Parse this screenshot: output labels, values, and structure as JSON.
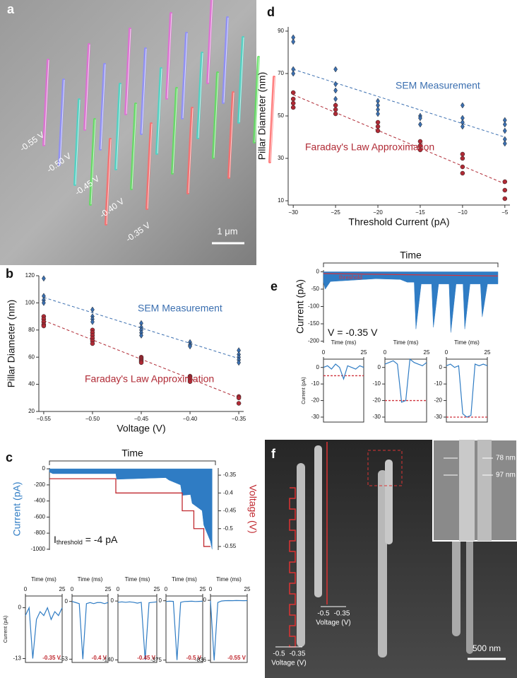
{
  "images": {
    "a": {
      "label": "a",
      "voltages": [
        "-0.55 V",
        "-0.50 V",
        "-0.45 V",
        "-0.40 V",
        "-0.35 V"
      ],
      "scale_bar": "1 μm"
    },
    "f": {
      "label": "f",
      "widths": [
        "78 nm",
        "97 nm"
      ],
      "voltage_scales": [
        {
          "low": "-0.5",
          "high": "-0.35",
          "label": "Voltage (V)"
        },
        {
          "low": "-0.5",
          "high": "-0.35",
          "label": "Voltage (V)"
        }
      ],
      "scale_bar": "500 nm"
    }
  },
  "chart_data": [
    {
      "type": "scatter",
      "panel": "b",
      "xlabel": "Voltage (V)",
      "ylabel": "Pillar Diameter (nm)",
      "xlim": [
        -0.555,
        -0.345
      ],
      "ylim": [
        20,
        120
      ],
      "xticks": [
        {
          "value": -0.55,
          "label": "−0.55"
        },
        {
          "value": -0.5,
          "label": "−0.50"
        },
        {
          "value": -0.45,
          "label": "−0.45"
        },
        {
          "value": -0.4,
          "label": "−0.40"
        },
        {
          "value": -0.35,
          "label": "−0.35"
        }
      ],
      "yticks": [
        20,
        40,
        60,
        80,
        100,
        120
      ],
      "series": [
        {
          "name": "SEM Measurement",
          "color": "#3b6fb0",
          "marker": "diamond",
          "x": [
            -0.55,
            -0.55,
            -0.55,
            -0.55,
            -0.5,
            -0.5,
            -0.5,
            -0.5,
            -0.45,
            -0.45,
            -0.45,
            -0.45,
            -0.45,
            -0.4,
            -0.4,
            -0.4,
            -0.35,
            -0.35,
            -0.35,
            -0.35,
            -0.35
          ],
          "values": [
            118,
            105,
            102,
            100,
            95,
            90,
            88,
            86,
            85,
            82,
            80,
            78,
            76,
            71,
            69,
            68,
            65,
            62,
            60,
            58,
            56
          ],
          "fit": {
            "x": [
              -0.55,
              -0.35
            ],
            "values": [
              104,
              59
            ]
          }
        },
        {
          "name": "Faraday's Law Approximation",
          "color": "#b02a35",
          "marker": "circle",
          "x": [
            -0.55,
            -0.55,
            -0.55,
            -0.55,
            -0.55,
            -0.5,
            -0.5,
            -0.5,
            -0.5,
            -0.5,
            -0.5,
            -0.45,
            -0.45,
            -0.45,
            -0.45,
            -0.45,
            -0.4,
            -0.4,
            -0.4,
            -0.4,
            -0.4,
            -0.35,
            -0.35,
            -0.35
          ],
          "values": [
            90,
            88,
            86,
            84,
            83,
            80,
            78,
            76,
            74,
            72,
            70,
            60,
            59,
            58,
            57,
            56,
            46,
            45,
            44,
            43,
            42,
            31,
            30,
            26
          ],
          "fit": {
            "x": [
              -0.55,
              -0.35
            ],
            "values": [
              87,
              30
            ]
          }
        }
      ]
    },
    {
      "type": "scatter",
      "panel": "d",
      "xlabel": "Threshold Current (pA)",
      "ylabel": "Pillar Diameter (nm)",
      "xlim": [
        -30.6,
        -4.4
      ],
      "ylim": [
        8,
        92
      ],
      "xticks": [
        {
          "value": -30,
          "label": "−30"
        },
        {
          "value": -25,
          "label": "−25"
        },
        {
          "value": -20,
          "label": "−20"
        },
        {
          "value": -15,
          "label": "−15"
        },
        {
          "value": -10,
          "label": "−10"
        },
        {
          "value": -5,
          "label": "−5"
        }
      ],
      "yticks": [
        10,
        30,
        50,
        70,
        90
      ],
      "series": [
        {
          "name": "SEM Measurement",
          "color": "#3b6fb0",
          "marker": "diamond",
          "x": [
            -30,
            -30,
            -30,
            -30,
            -25,
            -25,
            -25,
            -25,
            -25,
            -20,
            -20,
            -20,
            -20,
            -15,
            -15,
            -15,
            -10,
            -10,
            -10,
            -10,
            -5,
            -5,
            -5,
            -5,
            -5
          ],
          "values": [
            87,
            85,
            72,
            70,
            72,
            65,
            62,
            58,
            55,
            57,
            55,
            53,
            51,
            50,
            49,
            46,
            55,
            49,
            47,
            45,
            48,
            46,
            43,
            39,
            37
          ],
          "fit": {
            "x": [
              -30,
              -5
            ],
            "values": [
              72,
              40
            ]
          }
        },
        {
          "name": "Faraday's Law Approximation",
          "color": "#b02a35",
          "marker": "circle",
          "x": [
            -30,
            -30,
            -30,
            -30,
            -25,
            -25,
            -25,
            -20,
            -20,
            -20,
            -15,
            -15,
            -15,
            -10,
            -10,
            -10,
            -10,
            -5,
            -5,
            -5
          ],
          "values": [
            61,
            58,
            56,
            54,
            55,
            53,
            51,
            47,
            45,
            43,
            38,
            36,
            34,
            32,
            30,
            26,
            23,
            19,
            15,
            11
          ],
          "fit": {
            "x": [
              -30,
              -5
            ],
            "values": [
              60,
              18
            ]
          }
        }
      ]
    },
    {
      "type": "area",
      "panel": "c",
      "xlabel": "Time",
      "ylabel": "Current (pA)",
      "y2label": "Voltage (V)",
      "annotation": {
        "main": "I",
        "sub": "threshold",
        "tail": " = -4 pA"
      },
      "xlim": [
        0,
        100
      ],
      "ylim": [
        -1010,
        10
      ],
      "yticks": [
        0,
        -200,
        -400,
        -600,
        -800,
        -1000
      ],
      "y2lim": [
        -0.56,
        -0.33
      ],
      "y2ticks": [
        -0.35,
        -0.4,
        -0.45,
        -0.5,
        -0.55
      ],
      "series": [
        {
          "color": "#2f7cc4",
          "style": "area",
          "x": [
            0,
            2,
            40,
            40.5,
            70,
            72,
            79,
            80,
            85,
            86,
            92,
            93,
            97,
            98
          ],
          "values": [
            -40,
            -60,
            -60,
            -130,
            -110,
            -140,
            -200,
            -330,
            -320,
            -430,
            -520,
            -700,
            -900,
            -1000
          ]
        },
        {
          "color": "#c0282f",
          "style": "line",
          "axis": "y2",
          "x": [
            0,
            40,
            40,
            80,
            80,
            87,
            87,
            93,
            93,
            97
          ],
          "values": [
            -0.36,
            -0.36,
            -0.4,
            -0.4,
            -0.45,
            -0.45,
            -0.5,
            -0.5,
            -0.55,
            -0.55
          ]
        }
      ]
    },
    {
      "type": "line",
      "xlabel": "Time (ms)",
      "ylabel": "Current (pA)",
      "voltage_label": "-0.35 V",
      "xlim": [
        0,
        25
      ],
      "xticks": [
        0,
        25
      ],
      "ylim": [
        -14,
        3
      ],
      "yticks": [
        0,
        -13
      ],
      "series": [
        {
          "color": "#2f7cc4",
          "x": [
            0,
            2.5,
            5,
            7.5,
            10,
            12.5,
            15,
            17.5,
            20,
            22.5,
            25
          ],
          "values": [
            -2,
            0,
            -13,
            -3,
            -1,
            -2,
            0,
            -3,
            -1,
            -2,
            0
          ]
        }
      ]
    },
    {
      "type": "line",
      "xlabel": "Time (ms)",
      "voltage_label": "-0.4 V",
      "xlim": [
        0,
        25
      ],
      "xticks": [
        0,
        25
      ],
      "ylim": [
        -56,
        5
      ],
      "yticks": [
        0,
        -53
      ],
      "series": [
        {
          "color": "#2f7cc4",
          "x": [
            0,
            2.5,
            5,
            7.5,
            10,
            12.5,
            15,
            17.5,
            20,
            22.5,
            25
          ],
          "values": [
            0,
            -1,
            -2,
            -53,
            -2,
            -1,
            -2,
            -1,
            -1,
            -2,
            -1
          ]
        }
      ]
    },
    {
      "type": "line",
      "xlabel": "Time (ms)",
      "voltage_label": "-0.45 V",
      "xlim": [
        0,
        25
      ],
      "xticks": [
        0,
        25
      ],
      "ylim": [
        -146,
        12
      ],
      "yticks": [
        0,
        -140
      ],
      "series": [
        {
          "color": "#2f7cc4",
          "x": [
            0,
            2.5,
            5,
            7.5,
            10,
            12.5,
            15,
            17.5,
            20,
            22.5,
            25
          ],
          "values": [
            -3,
            -2,
            -3,
            -2,
            -3,
            -5,
            -3,
            -140,
            -4,
            -3,
            -2
          ]
        }
      ]
    },
    {
      "type": "line",
      "xlabel": "Time (ms)",
      "voltage_label": "-0.5 V",
      "xlim": [
        0,
        25
      ],
      "xticks": [
        0,
        25
      ],
      "ylim": [
        -390,
        30
      ],
      "yticks": [
        0,
        -375
      ],
      "series": [
        {
          "color": "#2f7cc4",
          "x": [
            0,
            2.5,
            5,
            7.5,
            10,
            12.5,
            15,
            17.5,
            20,
            22.5,
            25
          ],
          "values": [
            -5,
            -3,
            -4,
            -375,
            -10,
            -5,
            -4,
            -3,
            -5,
            -4,
            -3
          ]
        }
      ]
    },
    {
      "type": "line",
      "xlabel": "Time (ms)",
      "voltage_label": "-0.55 V",
      "xlim": [
        0,
        25
      ],
      "xticks": [
        0,
        25
      ],
      "ylim": [
        -865,
        60
      ],
      "yticks": [
        0,
        -836
      ],
      "series": [
        {
          "color": "#2f7cc4",
          "x": [
            0,
            2.5,
            5,
            7.5,
            10,
            12.5,
            15,
            17.5,
            20,
            22.5,
            25
          ],
          "values": [
            -5,
            -836,
            -30,
            -10,
            -5,
            -4,
            -5,
            -3,
            -4,
            -5,
            -4
          ]
        }
      ]
    },
    {
      "type": "area",
      "panel": "e",
      "xlabel": "Time",
      "ylabel": "Current (pA)",
      "annotation": {
        "main": "V = -0.35 V"
      },
      "xlim": [
        0,
        100
      ],
      "ylim": [
        -205,
        5
      ],
      "yticks": [
        0,
        -50,
        -100,
        -150,
        -200
      ],
      "series": [
        {
          "color": "#2f7cc4",
          "style": "area",
          "x": [
            0,
            1,
            4,
            30,
            44,
            48,
            52,
            53,
            56,
            62,
            63,
            66,
            72,
            73,
            76,
            80,
            81,
            84,
            90,
            91,
            94,
            100
          ],
          "values": [
            -30,
            -50,
            -28,
            -20,
            -22,
            -30,
            -30,
            -165,
            -35,
            -35,
            -160,
            -35,
            -35,
            -175,
            -35,
            -35,
            -165,
            -35,
            -35,
            -130,
            -35,
            -35
          ]
        },
        {
          "name": "threshold",
          "color": "#d0353f",
          "style": "line",
          "x": [
            0,
            100
          ],
          "values": [
            -5,
            -12
          ]
        }
      ]
    },
    {
      "type": "line",
      "xlabel": "Time (ms)",
      "ylabel": "Current (pA)",
      "xlim": [
        0,
        25
      ],
      "xticks": [
        0,
        25
      ],
      "ylim": [
        -33,
        5
      ],
      "yticks": [
        0,
        -10,
        -20,
        -30
      ],
      "threshold": -5,
      "series": [
        {
          "color": "#2f7cc4",
          "x": [
            0,
            2.5,
            5,
            7.5,
            10,
            12.5,
            15,
            17.5,
            20,
            22.5,
            25
          ],
          "values": [
            0,
            1,
            -1,
            2,
            0,
            -7,
            1,
            0,
            -1,
            1,
            0
          ]
        }
      ]
    },
    {
      "type": "line",
      "xlabel": "Time (ms)",
      "xlim": [
        0,
        25
      ],
      "xticks": [
        0,
        25
      ],
      "ylim": [
        -33,
        5
      ],
      "yticks": [
        0,
        -10,
        -20,
        -30
      ],
      "threshold": -20,
      "series": [
        {
          "color": "#2f7cc4",
          "x": [
            0,
            2.5,
            5,
            7.5,
            10,
            12.5,
            15,
            17.5,
            20,
            22.5,
            25
          ],
          "values": [
            2,
            3,
            4,
            2,
            -21,
            -20,
            5,
            3,
            2,
            1,
            3
          ]
        }
      ]
    },
    {
      "type": "line",
      "xlabel": "Time (ms)",
      "xlim": [
        0,
        25
      ],
      "xticks": [
        0,
        25
      ],
      "ylim": [
        -33,
        5
      ],
      "yticks": [
        0,
        -10,
        -20,
        -30
      ],
      "threshold": -30,
      "series": [
        {
          "color": "#2f7cc4",
          "x": [
            0,
            2.5,
            5,
            7.5,
            10,
            12.5,
            15,
            17.5,
            20,
            22.5,
            25
          ],
          "values": [
            1,
            2,
            0,
            1,
            -28,
            -30,
            -29,
            2,
            1,
            2,
            1
          ]
        }
      ]
    }
  ]
}
